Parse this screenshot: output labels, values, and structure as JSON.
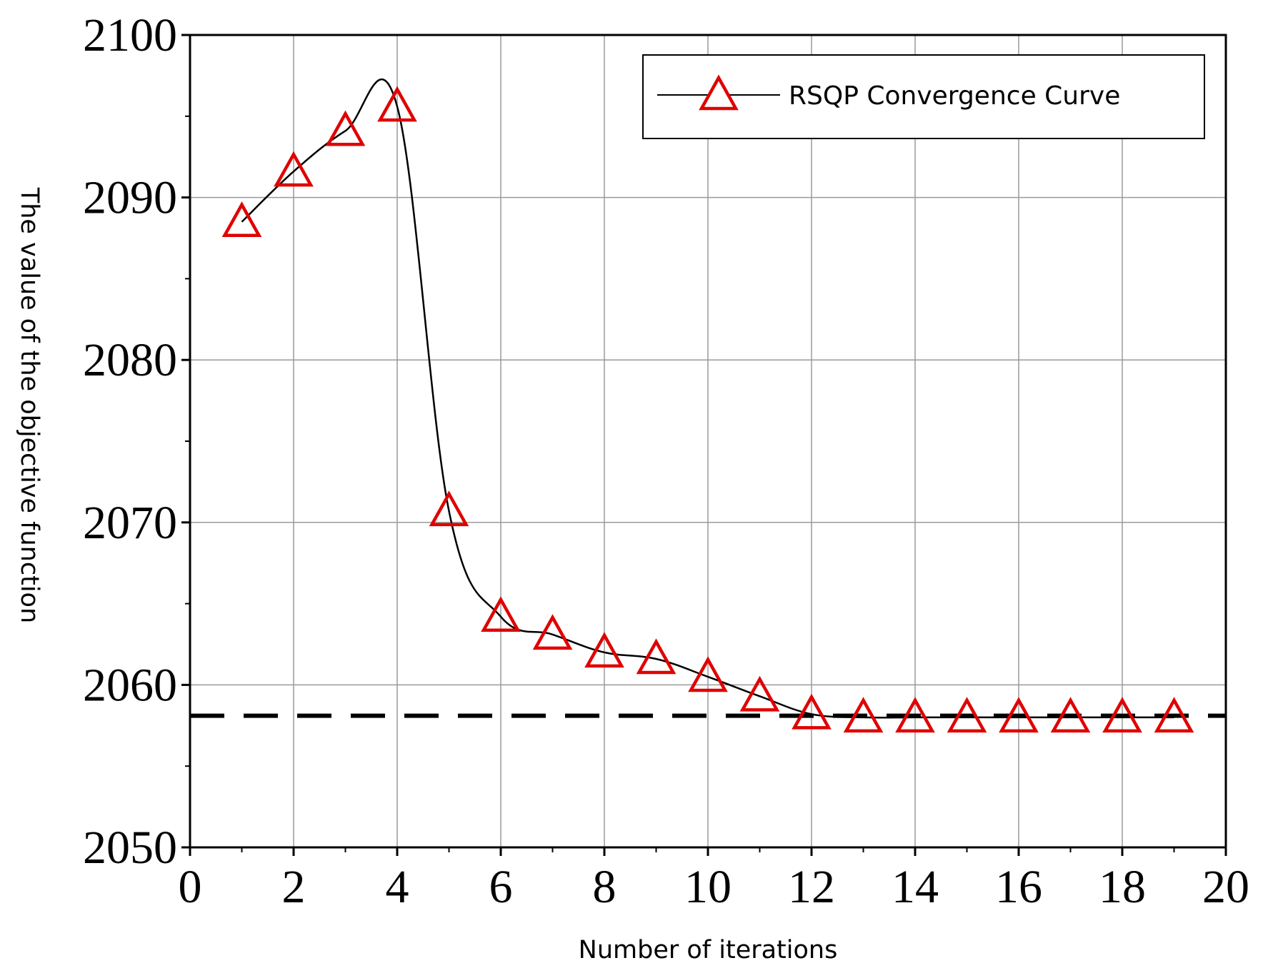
{
  "chart_data": {
    "type": "line",
    "xlabel": "Number of iterations",
    "ylabel": "The value of the objective function",
    "xlim": [
      0,
      20
    ],
    "ylim": [
      2050,
      2100
    ],
    "xticks": [
      0,
      2,
      4,
      6,
      8,
      10,
      12,
      14,
      16,
      18,
      20
    ],
    "yticks": [
      2050,
      2060,
      2070,
      2080,
      2090,
      2100
    ],
    "grid": true,
    "legend_position": "top-right",
    "reference_line": {
      "y": 2058.1,
      "style": "dashed",
      "color": "#000000"
    },
    "series": [
      {
        "name": "RSQP Convergence Curve",
        "marker": "triangle-open",
        "line_color": "#000000",
        "marker_color": "#e00000",
        "x": [
          1,
          2,
          3,
          4,
          5,
          6,
          7,
          8,
          9,
          10,
          11,
          12,
          13,
          14,
          15,
          16,
          17,
          18,
          19
        ],
        "y": [
          2088.5,
          2091.6,
          2094.1,
          2095.6,
          2070.7,
          2064.2,
          2063.1,
          2062.0,
          2061.6,
          2060.5,
          2059.3,
          2058.2,
          2058.0,
          2058.0,
          2058.0,
          2058.0,
          2058.0,
          2058.0,
          2058.0
        ]
      }
    ]
  }
}
